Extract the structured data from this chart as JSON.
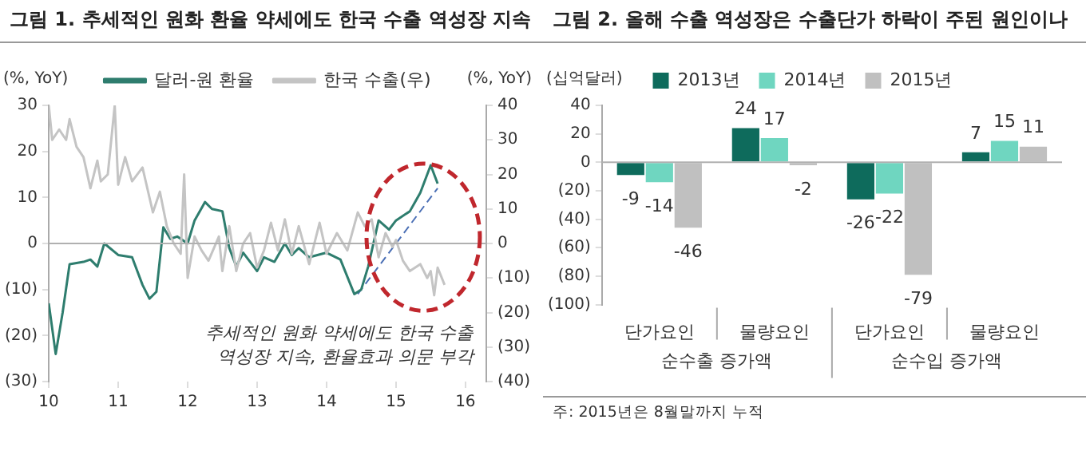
{
  "chart_data": [
    {
      "type": "line",
      "title": "그림 1. 추세적인 원화 환율 약세에도 한국 수출 역성장 지속",
      "ylabel": "(%, YoY)",
      "y2label": "(%, YoY)",
      "legend": "top",
      "xlim": [
        2010,
        2016.3
      ],
      "xticks": [
        {
          "value": 2010,
          "label": "10"
        },
        {
          "value": 2011,
          "label": "11"
        },
        {
          "value": 2012,
          "label": "12"
        },
        {
          "value": 2013,
          "label": "13"
        },
        {
          "value": 2014,
          "label": "14"
        },
        {
          "value": 2015,
          "label": "15"
        },
        {
          "value": 2016,
          "label": "16"
        }
      ],
      "ylim": [
        -30,
        30
      ],
      "yticks": [
        {
          "value": -30,
          "label": "(30)"
        },
        {
          "value": -20,
          "label": "(20)"
        },
        {
          "value": -10,
          "label": "(10)"
        },
        0,
        10,
        20,
        30
      ],
      "y2lim": [
        -40,
        40
      ],
      "y2ticks": [
        {
          "value": -40,
          "label": "(40)"
        },
        {
          "value": -30,
          "label": "(30)"
        },
        {
          "value": -20,
          "label": "(20)"
        },
        {
          "value": -10,
          "label": "(10)"
        },
        0,
        10,
        20,
        30,
        40
      ],
      "ref_lines": [
        {
          "axis": "y",
          "value": 0,
          "color": "#b0b0b0"
        }
      ],
      "marker": "none",
      "annotations": [
        "추세적인 원화 약세에도 한국 수출 역성장 지속, 환율효과 의문 부각"
      ],
      "series": [
        {
          "name": "한국 수출(우)",
          "color": "#c4c4c4",
          "axis": "y2",
          "x": [
            2010.0,
            2010.05,
            2010.15,
            2010.25,
            2010.3,
            2010.4,
            2010.5,
            2010.6,
            2010.7,
            2010.75,
            2010.85,
            2010.95,
            2011.0,
            2011.1,
            2011.2,
            2011.35,
            2011.5,
            2011.6,
            2011.7,
            2011.8,
            2011.9,
            2011.95,
            2012.0,
            2012.1,
            2012.2,
            2012.3,
            2012.45,
            2012.5,
            2012.6,
            2012.7,
            2012.8,
            2012.9,
            2013.0,
            2013.1,
            2013.2,
            2013.3,
            2013.4,
            2013.5,
            2013.6,
            2013.75,
            2013.9,
            2014.0,
            2014.15,
            2014.3,
            2014.45,
            2014.55,
            2014.65,
            2014.75,
            2014.85,
            2014.95,
            2015.0,
            2015.1,
            2015.2,
            2015.35,
            2015.45,
            2015.5,
            2015.55,
            2015.6,
            2015.7
          ],
          "values": [
            40,
            30,
            33,
            30,
            36,
            28,
            25,
            16,
            24,
            18,
            20,
            40,
            17,
            25,
            18,
            22,
            9,
            15,
            5,
            0,
            -3,
            20,
            -10,
            2,
            -2,
            -5,
            2,
            -8,
            5,
            -8,
            0,
            3,
            -7,
            -2,
            6,
            -2,
            7,
            -3,
            5,
            -6,
            6,
            -3,
            3,
            -2,
            9,
            5,
            7,
            -4,
            3,
            -1,
            1,
            -5,
            -8,
            -6,
            -10,
            -8,
            -15,
            -7,
            -12
          ]
        },
        {
          "name": "달러-원 환율",
          "color": "#2e7d6e",
          "x": [
            2010.0,
            2010.1,
            2010.2,
            2010.3,
            2010.5,
            2010.6,
            2010.7,
            2010.8,
            2011.0,
            2011.2,
            2011.35,
            2011.45,
            2011.55,
            2011.65,
            2011.75,
            2011.85,
            2012.0,
            2012.1,
            2012.25,
            2012.35,
            2012.5,
            2012.6,
            2012.7,
            2012.8,
            2012.9,
            2013.0,
            2013.1,
            2013.25,
            2013.4,
            2013.5,
            2013.6,
            2013.75,
            2014.0,
            2014.2,
            2014.4,
            2014.5,
            2014.6,
            2014.75,
            2014.9,
            2015.0,
            2015.2,
            2015.35,
            2015.5,
            2015.6
          ],
          "values": [
            -13,
            -24,
            -15,
            -4.5,
            -4,
            -3.5,
            -5,
            0,
            -2.5,
            -3,
            -9,
            -12,
            -10.5,
            3.5,
            1,
            1.5,
            0,
            5,
            9,
            7.5,
            7,
            -1,
            -5,
            -2,
            -4,
            -6,
            -3,
            -4,
            0,
            -2.5,
            -1,
            -3,
            -2,
            -3.5,
            -11,
            -10,
            -5,
            5,
            3,
            5,
            7,
            11,
            17,
            13
          ]
        },
        {
          "color": "#4a6fb5",
          "line_style": "dashed",
          "x": [
            2014.45,
            2015.6
          ],
          "values": [
            -11,
            12
          ]
        }
      ]
    },
    {
      "type": "bar",
      "title": "그림 2. 올해 수출 역성장은 수출단가 하락이 주된 원인이나",
      "ylabel": "(십억달러)",
      "legend": "top",
      "data_labels": true,
      "categories": [
        "단가요인",
        "물량요인",
        "단가요인",
        "물량요인"
      ],
      "ylim": [
        -100,
        40
      ],
      "yticks": [
        {
          "value": -100,
          "label": "(100)"
        },
        {
          "value": -80,
          "label": "(80)"
        },
        {
          "value": -60,
          "label": "(60)"
        },
        {
          "value": -40,
          "label": "(40)"
        },
        {
          "value": -20,
          "label": "(20)"
        },
        0,
        20,
        40
      ],
      "ref_lines": [
        {
          "axis": "y",
          "value": 0,
          "color": "#b0b0b0"
        }
      ],
      "annotations": [
        "순수출 증가액",
        "순수입 증가액",
        "주: 2015년은 8월말까지 누적"
      ],
      "series": [
        {
          "name": "2013년",
          "color": "#0e6b5c",
          "values": [
            -9,
            24,
            -26,
            7
          ]
        },
        {
          "name": "2014년",
          "color": "#6fd6c0",
          "values": [
            -14,
            17,
            -22,
            15
          ]
        },
        {
          "name": "2015년",
          "color": "#c0c0c0",
          "values": [
            -46,
            -2,
            -79,
            11
          ]
        }
      ]
    }
  ]
}
